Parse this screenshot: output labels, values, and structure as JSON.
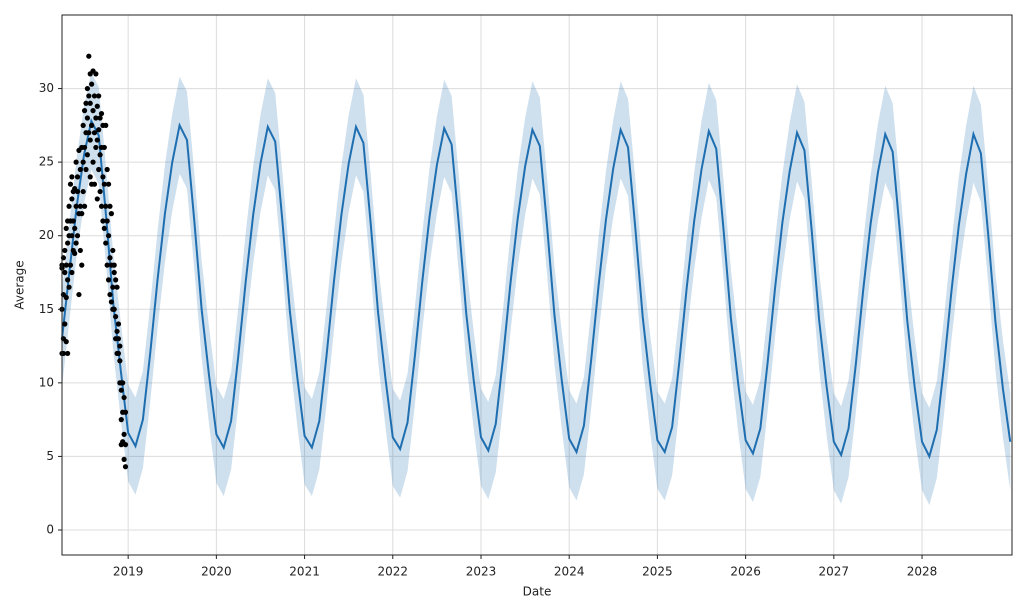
{
  "chart_data": {
    "type": "forecast",
    "x_label": "Date",
    "y_label": "Average",
    "xlim": [
      2018.25,
      2029.02
    ],
    "ylim": [
      -1.7,
      35
    ],
    "xticks": [
      2019,
      2020,
      2021,
      2022,
      2023,
      2024,
      2025,
      2026,
      2027,
      2028
    ],
    "yticks": [
      0,
      5,
      10,
      15,
      20,
      25,
      30
    ],
    "grid": true,
    "x": [
      2018.25,
      2018.333,
      2018.417,
      2018.5,
      2018.583,
      2018.667,
      2018.75,
      2018.833,
      2018.917,
      2019,
      2019.083,
      2019.167,
      2019.25,
      2019.333,
      2019.417,
      2019.5,
      2019.583,
      2019.667,
      2019.75,
      2019.833,
      2019.917,
      2020,
      2020.083,
      2020.167,
      2020.25,
      2020.333,
      2020.417,
      2020.5,
      2020.583,
      2020.667,
      2020.75,
      2020.833,
      2020.917,
      2021,
      2021.083,
      2021.167,
      2021.25,
      2021.333,
      2021.417,
      2021.5,
      2021.583,
      2021.667,
      2021.75,
      2021.833,
      2021.917,
      2022,
      2022.083,
      2022.167,
      2022.25,
      2022.333,
      2022.417,
      2022.5,
      2022.583,
      2022.667,
      2022.75,
      2022.833,
      2022.917,
      2023,
      2023.083,
      2023.167,
      2023.25,
      2023.333,
      2023.417,
      2023.5,
      2023.583,
      2023.667,
      2023.75,
      2023.833,
      2023.917,
      2024,
      2024.083,
      2024.167,
      2024.25,
      2024.333,
      2024.417,
      2024.5,
      2024.583,
      2024.667,
      2024.75,
      2024.833,
      2024.917,
      2025,
      2025.083,
      2025.167,
      2025.25,
      2025.333,
      2025.417,
      2025.5,
      2025.583,
      2025.667,
      2025.75,
      2025.833,
      2025.917,
      2026,
      2026.083,
      2026.167,
      2026.25,
      2026.333,
      2026.417,
      2026.5,
      2026.583,
      2026.667,
      2026.75,
      2026.833,
      2026.917,
      2027,
      2027.083,
      2027.167,
      2027.25,
      2027.333,
      2027.417,
      2027.5,
      2027.583,
      2027.667,
      2027.75,
      2027.833,
      2027.917,
      2028,
      2028.083,
      2028.167,
      2028.25,
      2028.333,
      2028.417,
      2028.5,
      2028.583,
      2028.667,
      2028.75,
      2028.833,
      2028.917,
      2029
    ],
    "forecast": {
      "color": "#1f6fb0",
      "values": [
        13,
        17.5,
        22,
        25.5,
        27.8,
        26.8,
        21.3,
        15.3,
        10.8,
        6.6,
        5.7,
        7.5,
        12,
        17,
        21.5,
        25,
        27.5,
        26.5,
        21,
        15,
        10.5,
        6.5,
        5.6,
        7.4,
        11.9,
        16.9,
        21.4,
        24.9,
        27.4,
        26.4,
        20.9,
        14.9,
        10.4,
        6.4,
        5.6,
        7.4,
        11.9,
        16.9,
        21.4,
        24.9,
        27.4,
        26.3,
        20.8,
        14.8,
        10.3,
        6.3,
        5.5,
        7.3,
        11.8,
        16.8,
        21.3,
        24.8,
        27.3,
        26.2,
        20.7,
        14.7,
        10.2,
        6.3,
        5.4,
        7.2,
        11.7,
        16.7,
        21.2,
        24.7,
        27.2,
        26.1,
        20.6,
        14.6,
        10.1,
        6.2,
        5.3,
        7.1,
        11.6,
        16.6,
        21.1,
        24.6,
        27.2,
        26,
        20.5,
        14.5,
        10,
        6.1,
        5.3,
        7,
        11.5,
        16.5,
        21,
        24.5,
        27.1,
        25.9,
        20.4,
        14.4,
        9.9,
        6.1,
        5.2,
        6.9,
        11.4,
        16.4,
        20.9,
        24.4,
        27,
        25.8,
        20.3,
        14.3,
        9.8,
        6,
        5.1,
        6.9,
        11.3,
        16.3,
        20.8,
        24.3,
        26.9,
        25.7,
        20.2,
        14.2,
        9.7,
        6,
        5,
        6.8,
        11.2,
        16.2,
        20.7,
        24.2,
        26.9,
        25.6,
        20.1,
        14.1,
        9.6,
        6
      ]
    },
    "interval": {
      "color": "#1f6fb0",
      "upper": [
        16.3,
        20.8,
        25.3,
        28.8,
        31.1,
        30.1,
        24.6,
        18.6,
        14.1,
        9.9,
        9,
        10.8,
        15.3,
        20.3,
        24.8,
        28.3,
        30.8,
        29.8,
        24.3,
        18.3,
        13.8,
        9.8,
        8.9,
        10.7,
        15.2,
        20.2,
        24.7,
        28.2,
        30.7,
        29.7,
        24.2,
        18.2,
        13.7,
        9.7,
        8.9,
        10.7,
        15.2,
        20.2,
        24.7,
        28.2,
        30.7,
        29.6,
        24.1,
        18.1,
        13.6,
        9.6,
        8.8,
        10.6,
        15.1,
        20.1,
        24.6,
        28.1,
        30.6,
        29.5,
        24,
        18,
        13.5,
        9.6,
        8.7,
        10.5,
        15,
        20,
        24.5,
        28,
        30.5,
        29.4,
        23.9,
        17.9,
        13.4,
        9.5,
        8.6,
        10.4,
        14.9,
        19.9,
        24.4,
        27.9,
        30.5,
        29.3,
        23.8,
        17.8,
        13.3,
        9.4,
        8.6,
        10.3,
        14.8,
        19.8,
        24.3,
        27.8,
        30.4,
        29.2,
        23.7,
        17.7,
        13.2,
        9.4,
        8.5,
        10.2,
        14.7,
        19.7,
        24.2,
        27.7,
        30.3,
        29.1,
        23.6,
        17.6,
        13.1,
        9.3,
        8.4,
        10.2,
        14.6,
        19.6,
        24.1,
        27.6,
        30.2,
        29,
        23.5,
        17.5,
        13,
        9.3,
        8.3,
        10.1,
        14.5,
        19.5,
        24,
        27.5,
        30.2,
        28.9,
        23.4,
        17.4,
        12.9,
        9.3
      ],
      "lower": [
        9.7,
        14.2,
        18.7,
        22.2,
        24.5,
        23.5,
        18,
        12,
        7.5,
        3.3,
        2.4,
        4.2,
        8.7,
        13.7,
        18.2,
        21.7,
        24.2,
        23.2,
        17.7,
        11.7,
        7.2,
        3.2,
        2.3,
        4.1,
        8.6,
        13.6,
        18.1,
        21.6,
        24.1,
        23.1,
        17.6,
        11.6,
        7.1,
        3.1,
        2.3,
        4.1,
        8.6,
        13.6,
        18.1,
        21.6,
        24.1,
        23,
        17.5,
        11.5,
        7,
        3,
        2.2,
        4,
        8.5,
        13.5,
        18,
        21.5,
        24,
        22.9,
        17.4,
        11.4,
        6.9,
        3,
        2.1,
        3.9,
        8.4,
        13.4,
        17.9,
        21.4,
        23.9,
        22.8,
        17.3,
        11.3,
        6.8,
        2.9,
        2,
        3.8,
        8.3,
        13.3,
        17.8,
        21.3,
        23.9,
        22.7,
        17.2,
        11.2,
        6.7,
        2.8,
        2,
        3.7,
        8.2,
        13.2,
        17.7,
        21.2,
        23.8,
        22.6,
        17.1,
        11.1,
        6.6,
        2.8,
        1.9,
        3.6,
        8.1,
        13.1,
        17.6,
        21.1,
        23.7,
        22.5,
        17,
        11,
        6.5,
        2.7,
        1.8,
        3.6,
        8,
        13,
        17.5,
        21,
        23.6,
        22.4,
        16.9,
        10.9,
        6.4,
        2.7,
        1.7,
        3.5,
        7.9,
        12.9,
        17.4,
        20.9,
        23.6,
        22.3,
        16.8,
        10.8,
        6.3,
        2.7
      ]
    },
    "observed": {
      "color": "#000000",
      "x": [
        2018.25,
        2018.25,
        2018.25,
        2018.25,
        2018.266,
        2018.266,
        2018.266,
        2018.266,
        2018.282,
        2018.282,
        2018.282,
        2018.298,
        2018.298,
        2018.298,
        2018.298,
        2018.314,
        2018.314,
        2018.314,
        2018.314,
        2018.33,
        2018.33,
        2018.33,
        2018.346,
        2018.346,
        2018.346,
        2018.362,
        2018.362,
        2018.362,
        2018.362,
        2018.378,
        2018.378,
        2018.378,
        2018.394,
        2018.394,
        2018.394,
        2018.41,
        2018.41,
        2018.41,
        2018.426,
        2018.426,
        2018.426,
        2018.442,
        2018.442,
        2018.442,
        2018.458,
        2018.458,
        2018.458,
        2018.474,
        2018.474,
        2018.474,
        2018.49,
        2018.49,
        2018.49,
        2018.506,
        2018.506,
        2018.506,
        2018.522,
        2018.522,
        2018.522,
        2018.538,
        2018.538,
        2018.538,
        2018.554,
        2018.554,
        2018.554,
        2018.57,
        2018.57,
        2018.57,
        2018.57,
        2018.586,
        2018.586,
        2018.586,
        2018.602,
        2018.602,
        2018.602,
        2018.618,
        2018.618,
        2018.618,
        2018.634,
        2018.634,
        2018.634,
        2018.65,
        2018.65,
        2018.65,
        2018.666,
        2018.666,
        2018.666,
        2018.682,
        2018.682,
        2018.682,
        2018.698,
        2018.698,
        2018.698,
        2018.714,
        2018.714,
        2018.714,
        2018.73,
        2018.73,
        2018.73,
        2018.746,
        2018.746,
        2018.746,
        2018.762,
        2018.762,
        2018.762,
        2018.778,
        2018.778,
        2018.778,
        2018.794,
        2018.794,
        2018.794,
        2018.81,
        2018.81,
        2018.81,
        2018.826,
        2018.826,
        2018.826,
        2018.842,
        2018.842,
        2018.842,
        2018.858,
        2018.858,
        2018.858,
        2018.874,
        2018.874,
        2018.874,
        2018.89,
        2018.89,
        2018.89,
        2018.906,
        2018.906,
        2018.906,
        2018.922,
        2018.922,
        2018.922,
        2018.922,
        2018.938,
        2018.938,
        2018.938,
        2018.954,
        2018.954,
        2018.954,
        2018.97,
        2018.97,
        2018.97
      ],
      "values": [
        12,
        15,
        18,
        17.8,
        13,
        18.5,
        16,
        12,
        19,
        14,
        17.5,
        20.5,
        15.8,
        12.8,
        18,
        21,
        17,
        19.5,
        12,
        22,
        16.5,
        20,
        23.5,
        18,
        21,
        24,
        20,
        22.5,
        17.5,
        21,
        23,
        19,
        23.2,
        20.5,
        18.8,
        22,
        25,
        19.5,
        20,
        24,
        23,
        16,
        21.5,
        25.8,
        24.5,
        22,
        19,
        26,
        21.5,
        18,
        27.5,
        23,
        25,
        28.5,
        26,
        22,
        29,
        27,
        24.5,
        30,
        28,
        25.5,
        32.2,
        29.5,
        27,
        31,
        29,
        26.5,
        24,
        30.3,
        27.5,
        23.5,
        31.2,
        28.5,
        25,
        29.5,
        27,
        23.5,
        31,
        28,
        26,
        28.8,
        26.5,
        22.5,
        29.5,
        27.2,
        24.5,
        28,
        25.5,
        23,
        28.3,
        26,
        22,
        27.5,
        24,
        21,
        26,
        23.5,
        20.5,
        27.5,
        22,
        19.5,
        24.5,
        21,
        18,
        23.5,
        20,
        17,
        22,
        18.5,
        16,
        21.5,
        18,
        15.5,
        19,
        16.5,
        15,
        18,
        17.5,
        15,
        17,
        14.5,
        13,
        16.5,
        13.5,
        12,
        14,
        12,
        13,
        12.5,
        11.5,
        10,
        10,
        9.5,
        7.5,
        5.8,
        10,
        8,
        6,
        9,
        6.5,
        4.8,
        8,
        5.8,
        4.3
      ]
    }
  }
}
